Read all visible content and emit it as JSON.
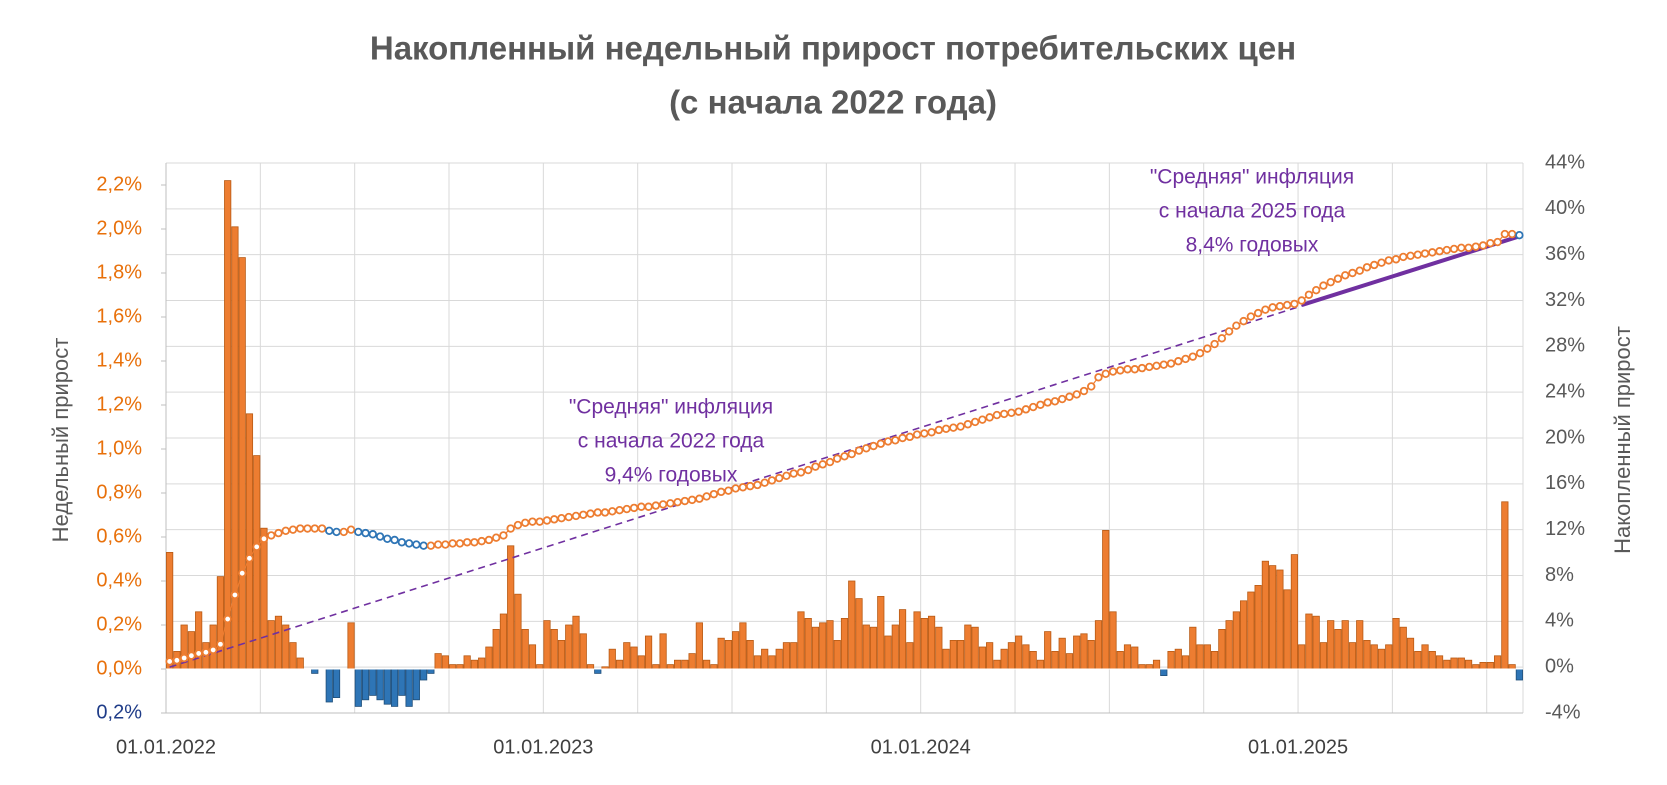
{
  "chart_data": {
    "type": "bar-line",
    "title": "Накопленный недельный прирост потребительских цен",
    "subtitle": "(с начала 2022 года)",
    "y_label": "Недельный прирост",
    "y2_label": "Накопленный прирост",
    "categories": [
      "01.01.2022",
      null,
      null,
      null,
      null,
      null,
      null,
      null,
      null,
      null,
      null,
      null,
      null,
      null,
      null,
      null,
      null,
      null,
      null,
      null,
      null,
      null,
      null,
      null,
      null,
      null,
      null,
      null,
      null,
      null,
      null,
      null,
      null,
      null,
      null,
      null,
      null,
      null,
      null,
      null,
      null,
      null,
      null,
      null,
      null,
      null,
      null,
      null,
      null,
      null,
      null,
      null,
      "01.01.2023",
      null,
      null,
      null,
      null,
      null,
      null,
      null,
      null,
      null,
      null,
      null,
      null,
      null,
      null,
      null,
      null,
      null,
      null,
      null,
      null,
      null,
      null,
      null,
      null,
      null,
      null,
      null,
      null,
      null,
      null,
      null,
      null,
      null,
      null,
      null,
      null,
      null,
      null,
      null,
      null,
      null,
      null,
      null,
      null,
      null,
      null,
      null,
      null,
      null,
      null,
      null,
      "01.01.2024",
      null,
      null,
      null,
      null,
      null,
      null,
      null,
      null,
      null,
      null,
      null,
      null,
      null,
      null,
      null,
      null,
      null,
      null,
      null,
      null,
      null,
      null,
      null,
      null,
      null,
      null,
      null,
      null,
      null,
      null,
      null,
      null,
      null,
      null,
      null,
      null,
      null,
      null,
      null,
      null,
      null,
      null,
      null,
      null,
      null,
      null,
      null,
      null,
      null,
      null,
      null,
      "01.01.2025",
      null,
      null,
      null,
      null,
      null,
      null,
      null,
      null,
      null,
      null,
      null,
      null,
      null,
      null,
      null,
      null,
      null,
      null,
      null,
      null,
      null,
      null,
      null,
      null,
      null,
      null,
      null,
      null,
      null,
      null
    ],
    "series": [
      {
        "name": "Недельный прирост",
        "color": "#ed7d31",
        "stroke": "#b85a14",
        "negative_color": "#2e75b6",
        "negative_stroke": "#1f4e79",
        "values": [
          0.53,
          0.08,
          0.2,
          0.17,
          0.26,
          0.12,
          0.2,
          0.42,
          2.22,
          2.01,
          1.87,
          1.16,
          0.97,
          0.64,
          0.22,
          0.24,
          0.2,
          0.12,
          0.05,
          0.0,
          -0.02,
          0.0,
          -0.15,
          -0.13,
          0.0,
          0.21,
          -0.17,
          -0.14,
          -0.12,
          -0.14,
          -0.16,
          -0.17,
          -0.12,
          -0.17,
          -0.14,
          -0.05,
          -0.02,
          0.07,
          0.06,
          0.02,
          0.02,
          0.06,
          0.04,
          0.05,
          0.1,
          0.18,
          0.25,
          0.56,
          0.34,
          0.18,
          0.11,
          0.02,
          0.22,
          0.18,
          0.13,
          0.2,
          0.24,
          0.16,
          0.02,
          -0.02,
          0.01,
          0.09,
          0.04,
          0.12,
          0.1,
          0.06,
          0.15,
          0.02,
          0.16,
          0.02,
          0.04,
          0.04,
          0.07,
          0.21,
          0.04,
          0.02,
          0.14,
          0.13,
          0.17,
          0.21,
          0.13,
          0.06,
          0.09,
          0.06,
          0.09,
          0.12,
          0.12,
          0.26,
          0.23,
          0.19,
          0.21,
          0.22,
          0.13,
          0.23,
          0.4,
          0.32,
          0.2,
          0.19,
          0.33,
          0.15,
          0.2,
          0.27,
          0.12,
          0.26,
          0.23,
          0.24,
          0.19,
          0.09,
          0.13,
          0.13,
          0.2,
          0.19,
          0.1,
          0.12,
          0.04,
          0.09,
          0.12,
          0.15,
          0.11,
          0.08,
          0.04,
          0.17,
          0.08,
          0.14,
          0.07,
          0.15,
          0.16,
          0.13,
          0.22,
          0.63,
          0.26,
          0.08,
          0.11,
          0.1,
          0.02,
          0.02,
          0.04,
          -0.03,
          0.08,
          0.09,
          0.06,
          0.19,
          0.11,
          0.11,
          0.08,
          0.18,
          0.22,
          0.26,
          0.31,
          0.35,
          0.38,
          0.49,
          0.47,
          0.45,
          0.36,
          0.52,
          0.11,
          0.25,
          0.24,
          0.12,
          0.22,
          0.18,
          0.22,
          0.12,
          0.22,
          0.13,
          0.11,
          0.09,
          0.11,
          0.23,
          0.19,
          0.14,
          0.08,
          0.11,
          0.08,
          0.06,
          0.04,
          0.05,
          0.05,
          0.04,
          0.02,
          0.03,
          0.03,
          0.06,
          0.76,
          0.02,
          -0.05
        ]
      },
      {
        "name": "Накопленный прирост",
        "axis": "y2",
        "color": "#ed7d31",
        "decline_color": "#2e75b6",
        "values": [
          0.5,
          0.6,
          0.8,
          1.0,
          1.2,
          1.3,
          1.5,
          2.0,
          4.2,
          6.3,
          8.2,
          9.5,
          10.5,
          11.2,
          11.5,
          11.7,
          11.9,
          12.0,
          12.1,
          12.1,
          12.1,
          12.1,
          11.9,
          11.8,
          11.8,
          12.0,
          11.8,
          11.7,
          11.6,
          11.4,
          11.2,
          11.1,
          10.9,
          10.8,
          10.7,
          10.6,
          10.6,
          10.7,
          10.7,
          10.8,
          10.8,
          10.9,
          10.9,
          11.0,
          11.1,
          11.3,
          11.5,
          12.1,
          12.4,
          12.6,
          12.7,
          12.7,
          12.8,
          12.9,
          13.0,
          13.1,
          13.2,
          13.3,
          13.4,
          13.5,
          13.5,
          13.6,
          13.7,
          13.8,
          13.9,
          14.0,
          14.0,
          14.1,
          14.2,
          14.3,
          14.4,
          14.5,
          14.6,
          14.7,
          14.9,
          15.1,
          15.3,
          15.4,
          15.6,
          15.7,
          15.8,
          15.9,
          16.1,
          16.3,
          16.5,
          16.7,
          16.9,
          17.0,
          17.2,
          17.5,
          17.7,
          17.9,
          18.2,
          18.4,
          18.6,
          18.9,
          19.1,
          19.3,
          19.5,
          19.7,
          19.8,
          20.0,
          20.1,
          20.3,
          20.4,
          20.5,
          20.7,
          20.8,
          20.9,
          21.0,
          21.2,
          21.4,
          21.6,
          21.8,
          22.0,
          22.1,
          22.2,
          22.3,
          22.5,
          22.7,
          22.9,
          23.1,
          23.2,
          23.4,
          23.6,
          23.8,
          24.1,
          24.5,
          25.3,
          25.6,
          25.8,
          25.9,
          26.0,
          26.0,
          26.1,
          26.2,
          26.3,
          26.4,
          26.5,
          26.7,
          26.9,
          27.1,
          27.4,
          27.8,
          28.2,
          28.7,
          29.3,
          29.8,
          30.2,
          30.6,
          30.9,
          31.2,
          31.4,
          31.5,
          31.6,
          31.7,
          32.0,
          32.5,
          32.9,
          33.3,
          33.6,
          33.9,
          34.2,
          34.4,
          34.6,
          34.9,
          35.1,
          35.3,
          35.5,
          35.6,
          35.8,
          35.9,
          36.0,
          36.1,
          36.2,
          36.3,
          36.4,
          36.5,
          36.6,
          36.6,
          36.7,
          36.8,
          37.0,
          37.1,
          37.8,
          37.8,
          37.7
        ]
      }
    ],
    "trend_lines": [
      {
        "x": [
          0,
          186
        ],
        "values": [
          0,
          37.6
        ],
        "color": "#7030a0",
        "dashed": true
      },
      {
        "x": [
          156,
          186
        ],
        "values": [
          31.6,
          37.6
        ],
        "color": "#7030a0",
        "dashed": false
      }
    ],
    "annotations": [
      {
        "lines": [
          "\"Средняя\" инфляция",
          "с начала 2022 года",
          "9,4% годовых"
        ],
        "color": "#7030a0"
      },
      {
        "lines": [
          "\"Средняя\" инфляция",
          "с начала 2025 года",
          "8,4% годовых"
        ],
        "color": "#7030a0"
      }
    ],
    "ylim": [
      -0.2,
      2.3
    ],
    "yticks": [
      {
        "value": -0.2,
        "label": "0,2%",
        "color": "#1f3c88"
      },
      {
        "value": 0,
        "label": "0,0%"
      },
      {
        "value": 0.2,
        "label": "0,2%"
      },
      {
        "value": 0.4,
        "label": "0,4%"
      },
      {
        "value": 0.6,
        "label": "0,6%"
      },
      {
        "value": 0.8,
        "label": "0,8%"
      },
      {
        "value": 1.0,
        "label": "1,0%"
      },
      {
        "value": 1.2,
        "label": "1,2%"
      },
      {
        "value": 1.4,
        "label": "1,4%"
      },
      {
        "value": 1.6,
        "label": "1,6%"
      },
      {
        "value": 1.8,
        "label": "1,8%"
      },
      {
        "value": 2.0,
        "label": "2,0%"
      },
      {
        "value": 2.2,
        "label": "2,2%"
      }
    ],
    "ytick_color": "#e8700a",
    "y2lim": [
      -4,
      44
    ],
    "y2ticks": [
      {
        "value": -4,
        "label": "-4%"
      },
      {
        "value": 0,
        "label": "0%"
      },
      {
        "value": 4,
        "label": "4%"
      },
      {
        "value": 8,
        "label": "8%"
      },
      {
        "value": 12,
        "label": "12%"
      },
      {
        "value": 16,
        "label": "16%"
      },
      {
        "value": 20,
        "label": "20%"
      },
      {
        "value": 24,
        "label": "24%"
      },
      {
        "value": 28,
        "label": "28%"
      },
      {
        "value": 32,
        "label": "32%"
      },
      {
        "value": 36,
        "label": "36%"
      },
      {
        "value": 40,
        "label": "40%"
      },
      {
        "value": 44,
        "label": "44%"
      }
    ],
    "y2tick_color": "#595959",
    "grid": true
  }
}
